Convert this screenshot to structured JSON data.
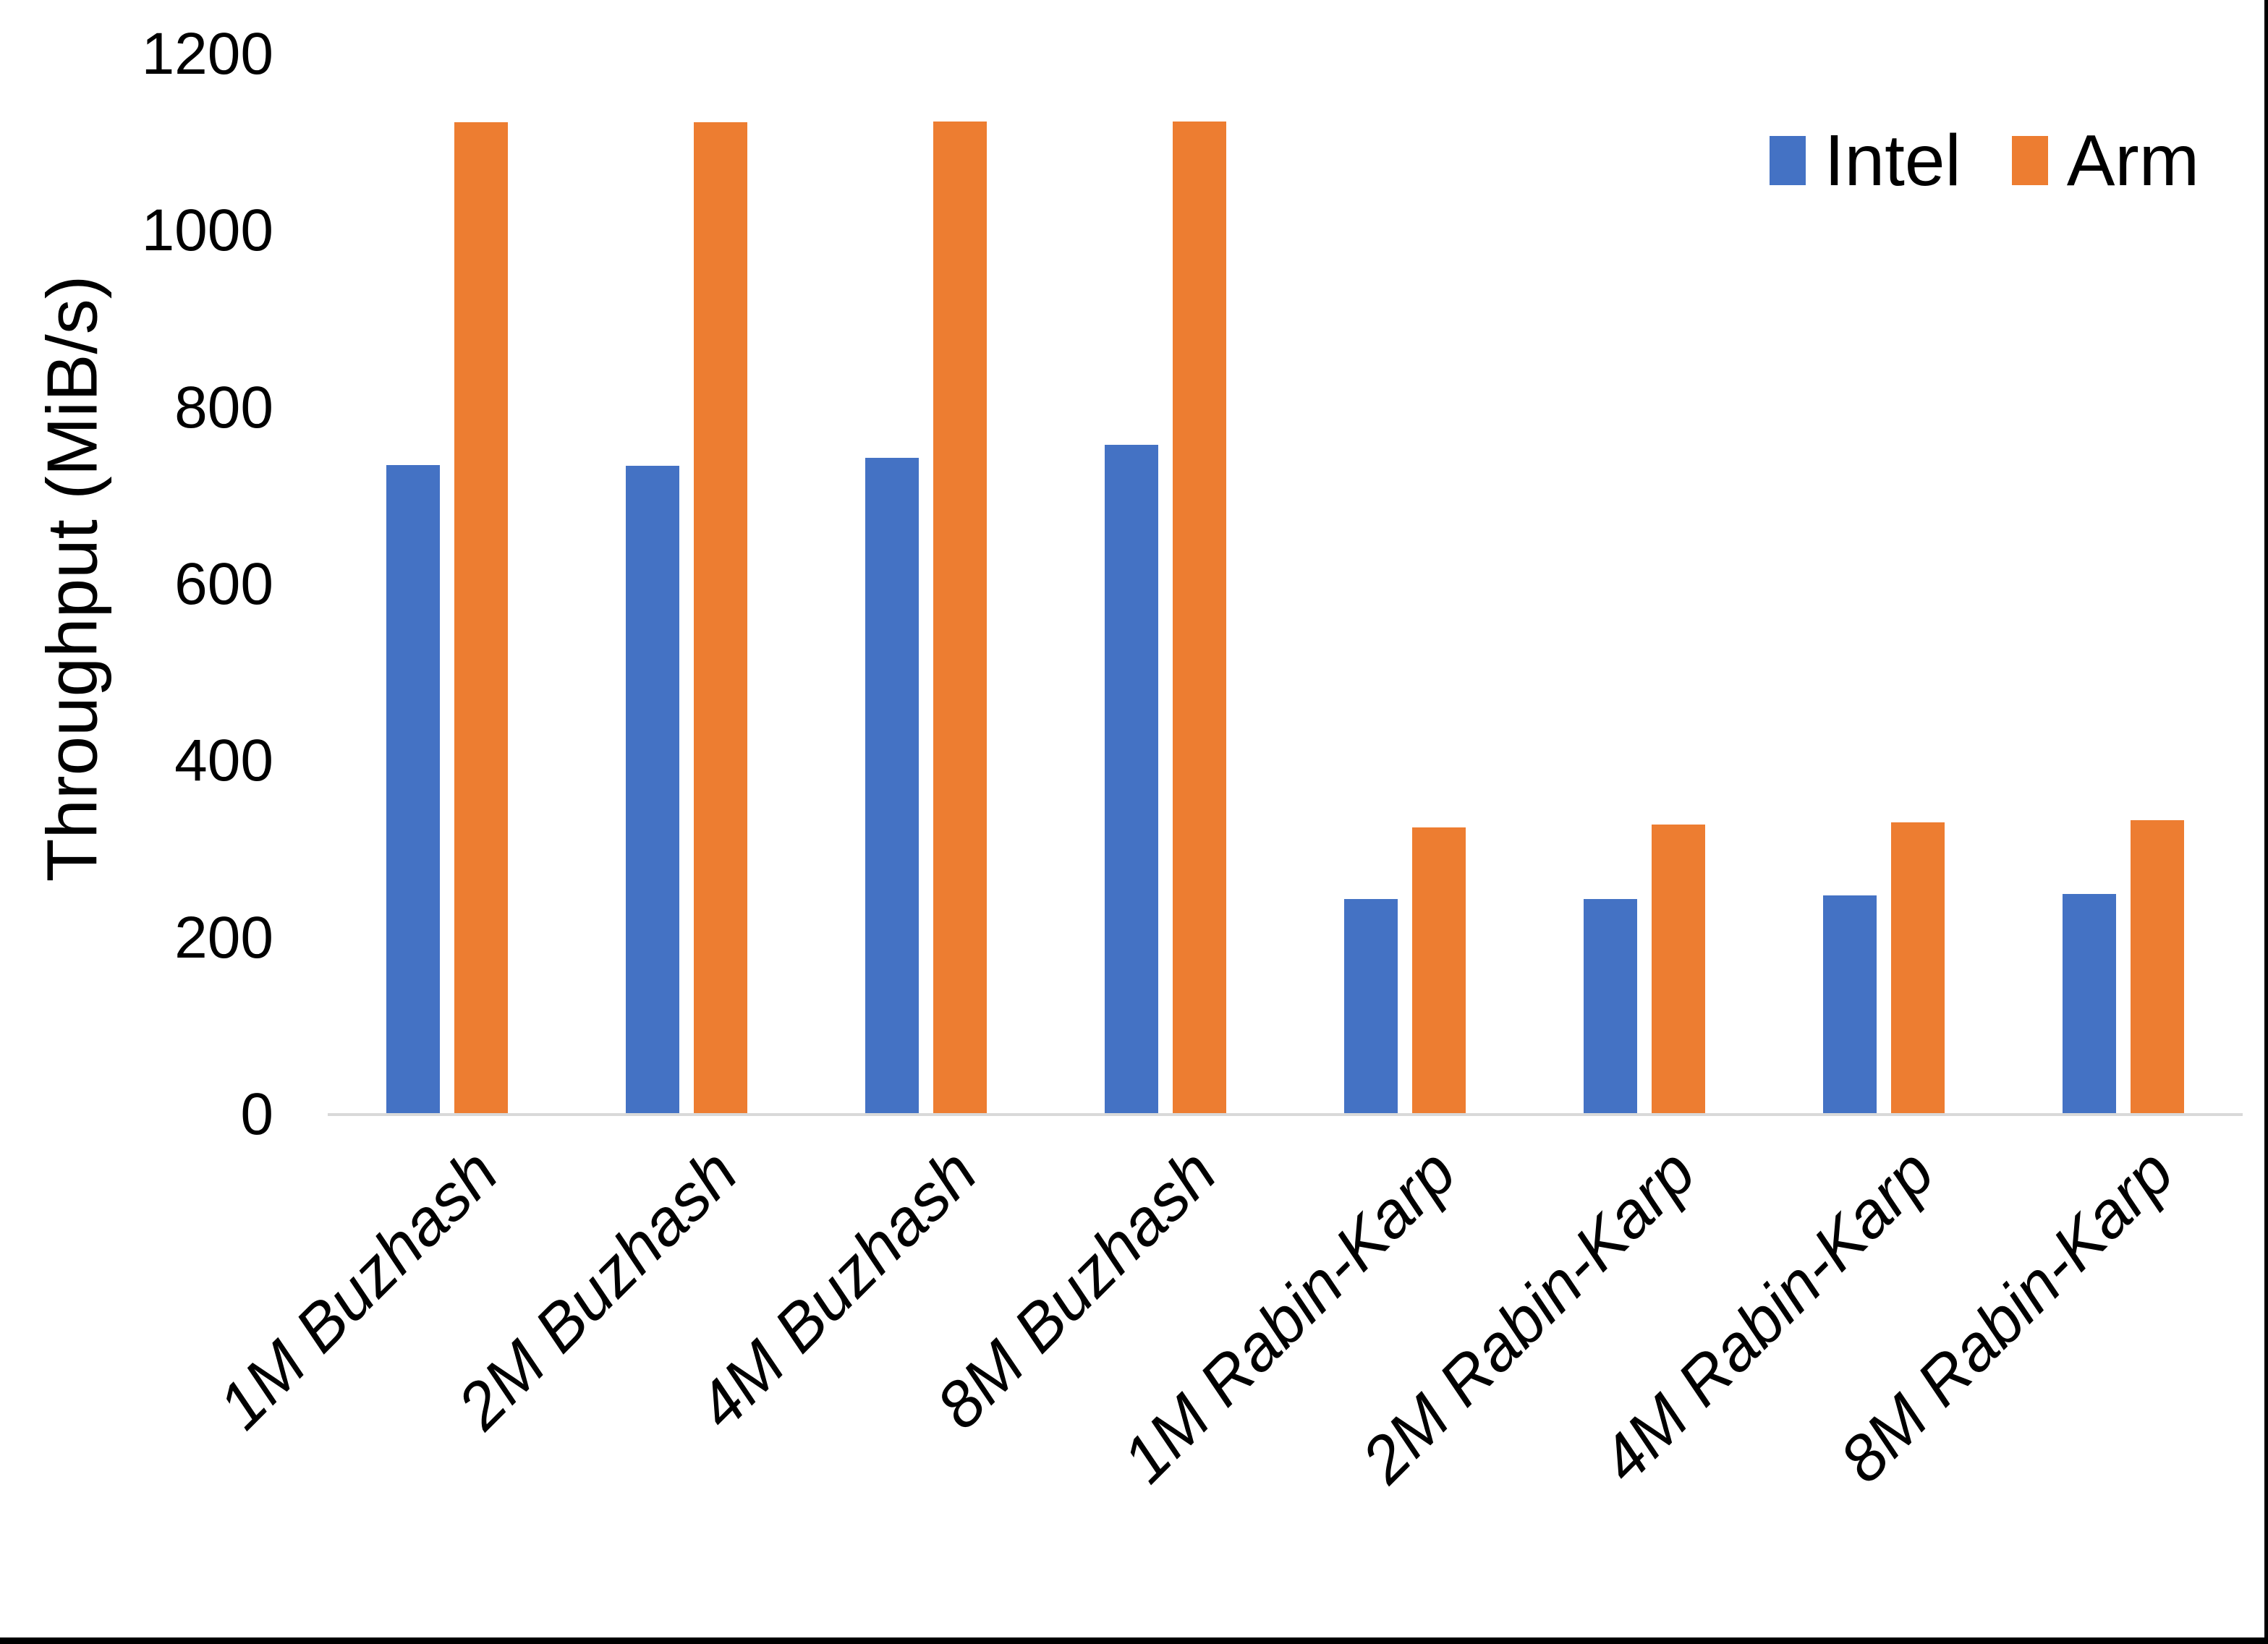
{
  "chart_data": {
    "type": "bar",
    "title": "",
    "ylabel": "Throughput (MiB/s)",
    "xlabel": "",
    "ylim": [
      0,
      1200
    ],
    "yticks": [
      0,
      200,
      400,
      600,
      800,
      1000,
      1200
    ],
    "grid": false,
    "legend_position": "top-right",
    "categories": [
      "1M Buzhash",
      "2M Buzhash",
      "4M Buzhash",
      "8M Buzhash",
      "1M Rabin-Karp",
      "2M Rabin-Karp",
      "4M Rabin-Karp",
      "8M Rabin-Karp"
    ],
    "series": [
      {
        "name": "Intel",
        "color": "#4472C4",
        "values": [
          735,
          734,
          743,
          758,
          244,
          244,
          248,
          250
        ]
      },
      {
        "name": "Arm",
        "color": "#ED7D31",
        "values": [
          1123,
          1123,
          1124,
          1124,
          325,
          328,
          331,
          333
        ]
      }
    ],
    "colors": {
      "axis_line": "#D9D9D9",
      "text": "#000000",
      "frame_border": "#000000"
    }
  }
}
